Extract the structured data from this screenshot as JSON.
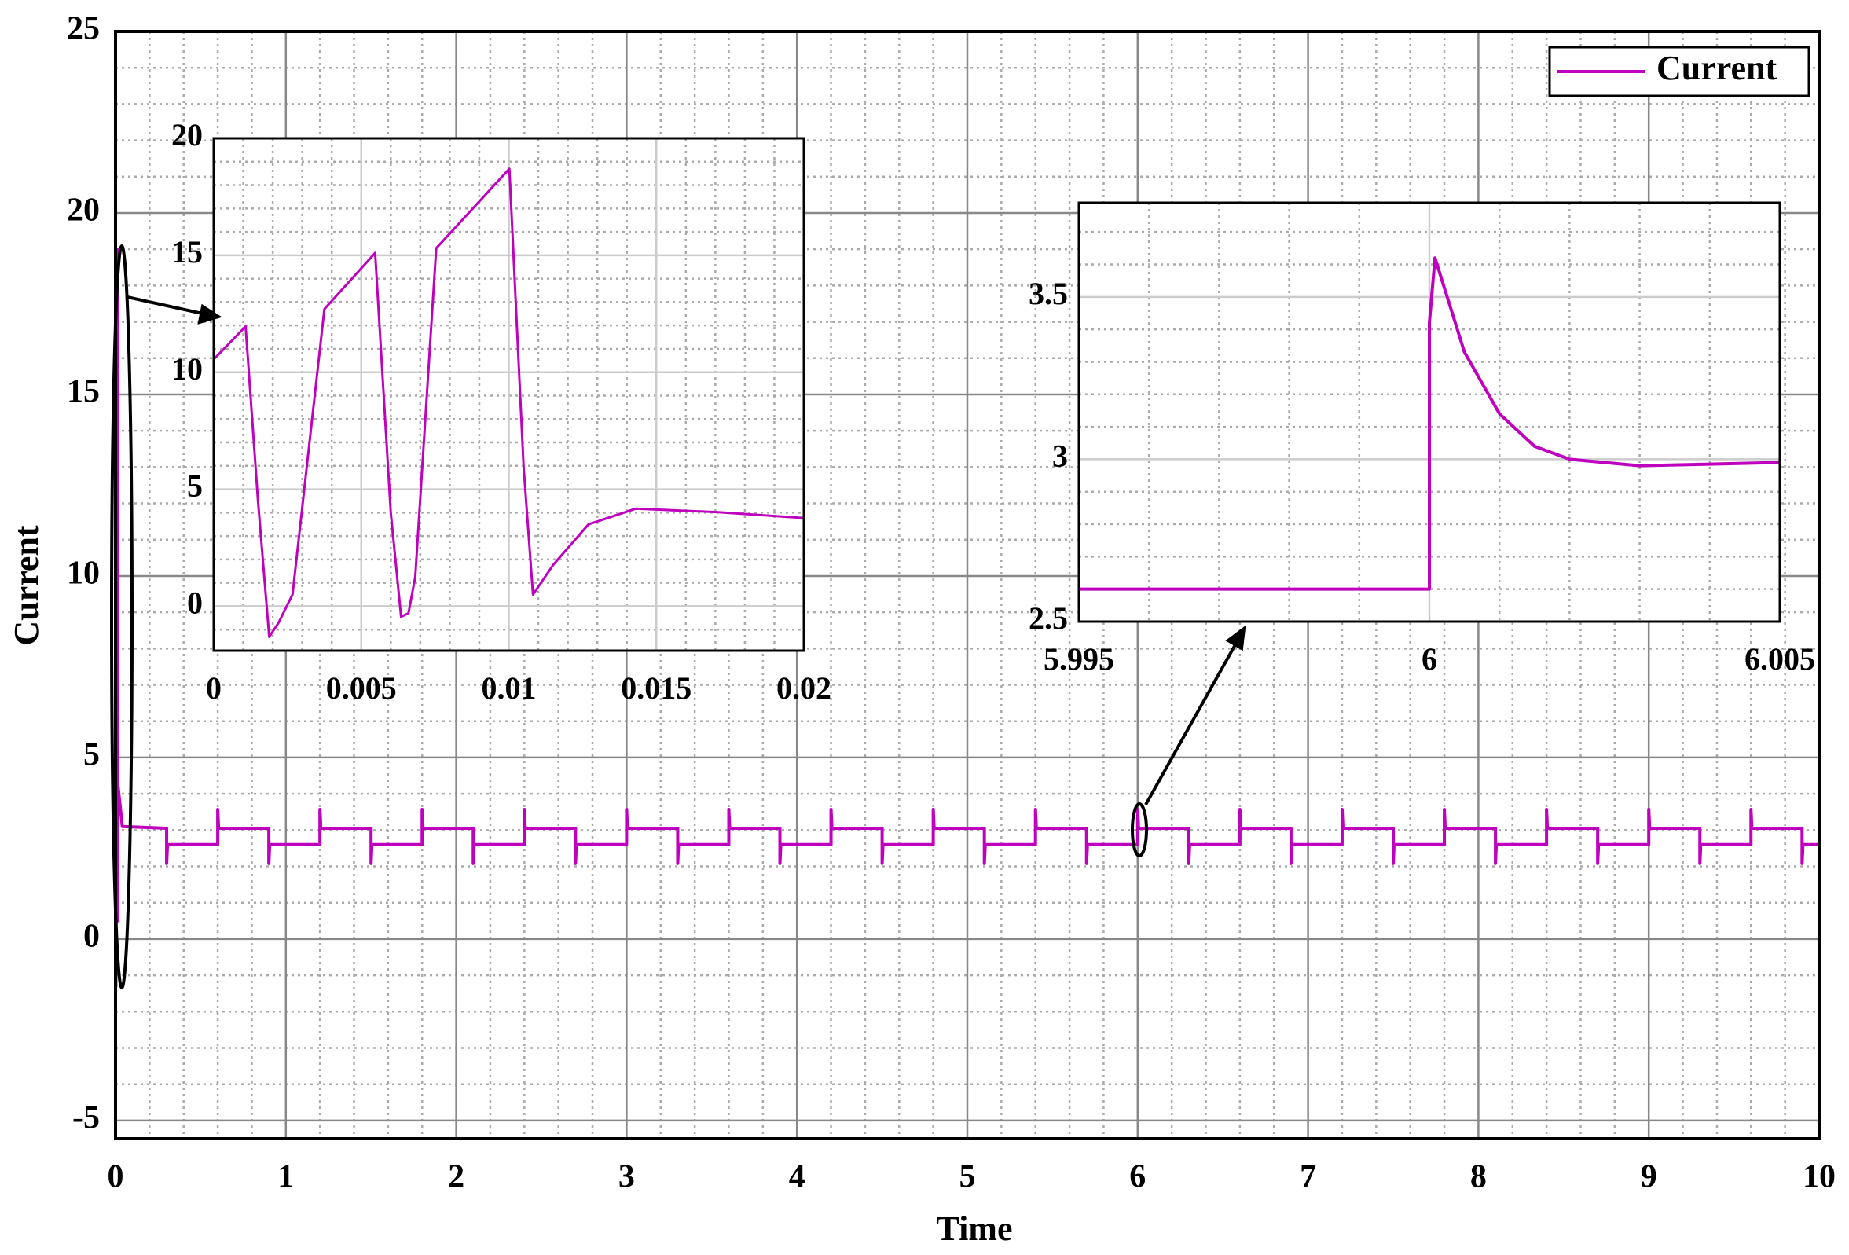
{
  "chart_data": [
    {
      "type": "line",
      "xlabel": "Time",
      "ylabel": "Current",
      "xlim": [
        0,
        10
      ],
      "xticks": [
        0,
        1,
        2,
        3,
        4,
        5,
        6,
        7,
        8,
        9,
        10
      ],
      "ylim": [
        -5.5,
        25
      ],
      "yticks": [
        -5,
        0,
        5,
        10,
        15,
        20,
        25
      ],
      "grid": true,
      "minor_grid": true,
      "legend": "upper right",
      "x": [
        0,
        0.002,
        0.01,
        0.011,
        0.015,
        0.04,
        0.3,
        0.3,
        0.305,
        0.6,
        0.6,
        0.605,
        0.9,
        0.9,
        0.905,
        1.2,
        1.2,
        1.205,
        1.5,
        1.5,
        1.505,
        1.8,
        1.8,
        1.805,
        2.1,
        2.1,
        2.105,
        2.4,
        2.4,
        2.405,
        2.7,
        2.7,
        2.705,
        3,
        3,
        3.005,
        3.3,
        3.3,
        3.305,
        3.6,
        3.6,
        3.605,
        3.9,
        3.9,
        3.905,
        4.2,
        4.2,
        4.205,
        4.5,
        4.5,
        4.505,
        4.8,
        4.8,
        4.805,
        5.1,
        5.1,
        5.105,
        5.4,
        5.4,
        5.405,
        5.7,
        5.7,
        5.705,
        6,
        6,
        6.005,
        6.3,
        6.3,
        6.305,
        6.6,
        6.6,
        6.605,
        6.9,
        6.9,
        6.905,
        7.2,
        7.2,
        7.205,
        7.5,
        7.5,
        7.505,
        7.8,
        7.8,
        7.805,
        8.1,
        8.1,
        8.105,
        8.4,
        8.4,
        8.405,
        8.7,
        8.7,
        8.705,
        9,
        9,
        9.005,
        9.3,
        9.3,
        9.305,
        9.6,
        9.6,
        9.605,
        9.9,
        9.9,
        9.905,
        10
      ],
      "series": [
        {
          "name": "Current",
          "color": "#bf00bf",
          "values": [
            10.5,
            -1.3,
            19,
            0.5,
            4.2,
            3.1,
            3.05,
            2.08,
            2.6,
            2.6,
            3.57,
            3.05,
            3.05,
            2.08,
            2.6,
            2.6,
            3.57,
            3.05,
            3.05,
            2.08,
            2.6,
            2.6,
            3.57,
            3.05,
            3.05,
            2.08,
            2.6,
            2.6,
            3.57,
            3.05,
            3.05,
            2.08,
            2.6,
            2.6,
            3.57,
            3.05,
            3.05,
            2.08,
            2.6,
            2.6,
            3.57,
            3.05,
            3.05,
            2.08,
            2.6,
            2.6,
            3.57,
            3.05,
            3.05,
            2.08,
            2.6,
            2.6,
            3.57,
            3.05,
            3.05,
            2.08,
            2.6,
            2.6,
            3.57,
            3.05,
            3.05,
            2.08,
            2.6,
            2.6,
            3.57,
            3.05,
            3.05,
            2.08,
            2.6,
            2.6,
            3.57,
            3.05,
            3.05,
            2.08,
            2.6,
            2.6,
            3.57,
            3.05,
            3.05,
            2.08,
            2.6,
            2.6,
            3.57,
            3.05,
            3.05,
            2.08,
            2.6,
            2.6,
            3.57,
            3.05,
            3.05,
            2.08,
            2.6,
            2.6,
            3.57,
            3.05,
            3.05,
            2.08,
            2.6,
            2.6,
            3.57,
            3.05,
            3.05,
            2.08,
            2.6,
            2.6
          ]
        }
      ]
    },
    {
      "type": "line",
      "xlim": [
        0,
        0.02
      ],
      "xticks": [
        0,
        0.005,
        0.01,
        0.015,
        0.02
      ],
      "ylim": [
        -1.9,
        20
      ],
      "yticks": [
        0,
        5,
        10,
        15,
        20
      ],
      "grid": true,
      "minor_grid": true,
      "color": "#bf00bf",
      "x": [
        0,
        0.00108,
        0.0015,
        0.00188,
        0.0022,
        0.00267,
        0.00375,
        0.00547,
        0.006,
        0.00635,
        0.0066,
        0.00683,
        0.00754,
        0.01002,
        0.0105,
        0.01082,
        0.0115,
        0.0127,
        0.0143,
        0.0171,
        0.02
      ],
      "values": [
        10.55,
        11.96,
        4.5,
        -1.31,
        -0.7,
        0.5,
        12.7,
        15.1,
        4.0,
        -0.45,
        -0.3,
        1.26,
        15.3,
        18.7,
        6.0,
        0.5,
        1.76,
        3.5,
        4.17,
        4.02,
        3.77
      ]
    },
    {
      "type": "line",
      "xlim": [
        5.995,
        6.005
      ],
      "xticks": [
        5.995,
        6,
        6.005
      ],
      "ylim": [
        2.5,
        3.79
      ],
      "yticks": [
        2.5,
        3,
        3.5
      ],
      "grid": true,
      "minor_grid": true,
      "color": "#bf00bf",
      "x": [
        5.995,
        6,
        6,
        6.00008,
        6.0005,
        6.001,
        6.0015,
        6.002,
        6.003,
        6.004,
        6.005
      ],
      "values": [
        2.6,
        2.6,
        3.42,
        3.62,
        3.33,
        3.14,
        3.04,
        3.0,
        2.98,
        2.985,
        2.99
      ]
    }
  ]
}
